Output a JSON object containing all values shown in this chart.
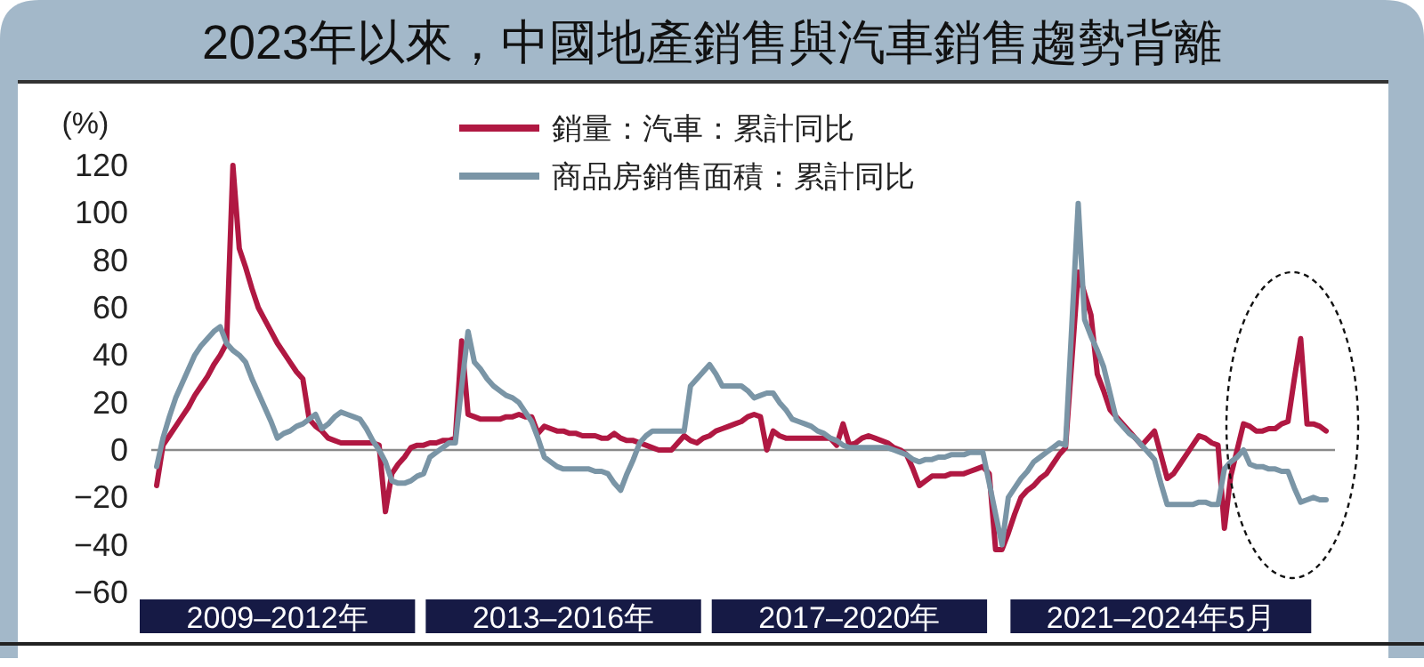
{
  "chart_data": {
    "type": "line",
    "title": "2023年以來，中國地產銷售與汽車銷售趨勢背離",
    "ylabel": "(%)",
    "categories": [
      null,
      null,
      null,
      null,
      null,
      null,
      null,
      null,
      null,
      null,
      null,
      null,
      null,
      null,
      null,
      null,
      null,
      null,
      null,
      "2009–2012年",
      null,
      null,
      null,
      null,
      null,
      null,
      null,
      null,
      null,
      null,
      null,
      null,
      null,
      null,
      null,
      null,
      null,
      null,
      null,
      null,
      null,
      null,
      null,
      null,
      null,
      null,
      null,
      null,
      null,
      null,
      null,
      null,
      null,
      null,
      null,
      null,
      null,
      null,
      null,
      null,
      null,
      null,
      null,
      null,
      "2013–2016年",
      null,
      null,
      null,
      null,
      null,
      null,
      null,
      null,
      null,
      null,
      null,
      null,
      null,
      null,
      null,
      null,
      null,
      null,
      null,
      null,
      null,
      null,
      null,
      null,
      null,
      null,
      null,
      null,
      null,
      null,
      null,
      null,
      null,
      null,
      null,
      null,
      null,
      null,
      null,
      null,
      null,
      null,
      null,
      null,
      "2017–2020年",
      null,
      null,
      null,
      null,
      null,
      null,
      null,
      null,
      null,
      null,
      null,
      null,
      null,
      null,
      null,
      null,
      null,
      null,
      null,
      null,
      null,
      null,
      null,
      null,
      null,
      null,
      null,
      null,
      null,
      null,
      null,
      null,
      null,
      null,
      null,
      null,
      null,
      null,
      null,
      null,
      null,
      null,
      null,
      null,
      null,
      null,
      null,
      null,
      "2021–2024年5月",
      null,
      null,
      null,
      null,
      null,
      null,
      null,
      null,
      null,
      null,
      null,
      null,
      null,
      null,
      null,
      null,
      null,
      null,
      null,
      null,
      null,
      null,
      null,
      null,
      null,
      null
    ],
    "ylim": [
      -60,
      120
    ],
    "yticks": [
      -60,
      -40,
      -20,
      0,
      20,
      40,
      60,
      80,
      100,
      120
    ],
    "ref_lines": [
      {
        "axis": "y",
        "value": 0,
        "color": "#8a8a8a"
      }
    ],
    "grid": false,
    "legend": "top",
    "marker": "none",
    "line_style": "solid",
    "series": [
      {
        "name": "銷量：汽車：累計同比",
        "color": "#b01842",
        "values": [
          -15,
          2,
          6,
          10,
          14,
          18,
          23,
          27,
          31,
          36,
          40,
          45,
          120,
          85,
          77,
          68,
          60,
          55,
          50,
          45,
          41,
          37,
          33,
          30,
          13,
          10,
          8,
          5,
          4,
          3,
          3,
          3,
          3,
          3,
          3,
          2,
          -26,
          -10,
          -6,
          -3,
          1,
          2,
          2,
          3,
          3,
          4,
          4,
          5,
          46,
          15,
          14,
          13,
          13,
          13,
          13,
          14,
          14,
          15,
          14,
          14,
          7,
          10,
          9,
          8,
          8,
          7,
          7,
          6,
          6,
          6,
          5,
          5,
          7,
          5,
          4,
          4,
          3,
          2,
          1,
          0,
          0,
          0,
          3,
          6,
          4,
          3,
          5,
          6,
          8,
          9,
          10,
          11,
          12,
          14,
          15,
          14,
          0,
          8,
          6,
          5,
          5,
          5,
          5,
          5,
          5,
          5,
          5,
          2,
          11,
          2,
          3,
          5,
          6,
          5,
          4,
          3,
          1,
          0,
          -2,
          -8,
          -15,
          -13,
          -11,
          -11,
          -11,
          -10,
          -10,
          -10,
          -9,
          -8,
          -7,
          -10,
          -42,
          -42,
          -35,
          -27,
          -20,
          -17,
          -15,
          -12,
          -10,
          -6,
          -2,
          1,
          38,
          75,
          66,
          57,
          32,
          25,
          17,
          14,
          11,
          8,
          5,
          2,
          5,
          8,
          -2,
          -12,
          -10,
          -6,
          -2,
          2,
          6,
          5,
          3,
          2,
          -33,
          -11,
          0,
          11,
          10,
          8,
          8,
          9,
          9,
          11,
          12,
          30,
          47,
          11,
          11,
          10,
          8
        ]
      },
      {
        "name": "商品房銷售面積：累計同比",
        "color": "#7a95a6",
        "values": [
          -7,
          5,
          14,
          22,
          28,
          34,
          40,
          44,
          47,
          50,
          52,
          45,
          42,
          40,
          37,
          30,
          24,
          18,
          12,
          5,
          7,
          8,
          10,
          11,
          13,
          15,
          9,
          11,
          14,
          16,
          15,
          14,
          13,
          9,
          4,
          0,
          -5,
          -13,
          -14,
          -14,
          -13,
          -11,
          -10,
          -3,
          -1,
          1,
          3,
          3,
          27,
          50,
          37,
          34,
          30,
          27,
          25,
          23,
          22,
          20,
          16,
          12,
          5,
          -3,
          -5,
          -7,
          -8,
          -8,
          -8,
          -8,
          -8,
          -9,
          -9,
          -10,
          -14,
          -17,
          -10,
          -4,
          3,
          6,
          8,
          8,
          8,
          8,
          8,
          8,
          27,
          30,
          33,
          36,
          32,
          27,
          27,
          27,
          27,
          25,
          22,
          23,
          24,
          24,
          20,
          17,
          13,
          12,
          11,
          10,
          8,
          7,
          5,
          4,
          2,
          1,
          1,
          1,
          1,
          1,
          1,
          1,
          0,
          -1,
          -2,
          -4,
          -5,
          -4,
          -4,
          -3,
          -3,
          -2,
          -2,
          -2,
          -1,
          -1,
          -1,
          -14,
          -27,
          -40,
          -20,
          -16,
          -12,
          -9,
          -5,
          -3,
          -1,
          1,
          3,
          2,
          53,
          104,
          55,
          48,
          42,
          35,
          24,
          13,
          10,
          7,
          5,
          2,
          -1,
          -4,
          -14,
          -23,
          -23,
          -23,
          -23,
          -23,
          -22,
          -22,
          -23,
          -23,
          -8,
          -5,
          -3,
          0,
          -6,
          -7,
          -7,
          -8,
          -8,
          -9,
          -9,
          -16,
          -22,
          -21,
          -20,
          -21,
          -21
        ]
      }
    ]
  }
}
